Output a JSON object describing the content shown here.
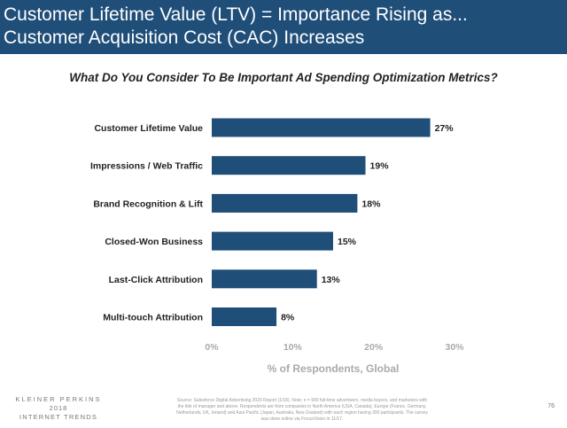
{
  "header": {
    "line1": "Customer Lifetime Value (LTV) = Importance Rising as...",
    "line2": "Customer Acquisition Cost (CAC) Increases"
  },
  "subtitle": "What Do You Consider To Be Important Ad Spending Optimization Metrics?",
  "chart_data": {
    "type": "bar",
    "orientation": "horizontal",
    "categories": [
      "Customer Lifetime Value",
      "Impressions / Web Traffic",
      "Brand Recognition & Lift",
      "Closed-Won Business",
      "Last-Click Attribution",
      "Multi-touch Attribution"
    ],
    "values": [
      27,
      19,
      18,
      15,
      13,
      8
    ],
    "value_labels": [
      "27%",
      "19%",
      "18%",
      "15%",
      "13%",
      "8%"
    ],
    "xlim": [
      0,
      30
    ],
    "xticks": [
      0,
      10,
      20,
      30
    ],
    "xtick_labels": [
      "0%",
      "10%",
      "20%",
      "30%"
    ],
    "xlabel": "% of Respondents, Global",
    "ylabel": "",
    "grid": false,
    "bar_color": "#1f4e79"
  },
  "footer": {
    "logo_line1": "KLEINER PERKINS",
    "logo_line2": "2018",
    "logo_line3": "INTERNET TRENDS",
    "source": "Source: Salesforce Digital Advertising 2020 Report (1/18). Note: n = 900 full-time advertisers, media buyers, and marketers with the title of manager and above. Respondents are from companies in North America (USA, Canada), Europe (France, Germany, Netherlands, UK, Ireland) and Asia Pacific (Japan, Australia, New Zealand) with each region having 300 participants. The survey was done online via FocusVision in 11/17.",
    "page_number": "76"
  },
  "colors": {
    "header_bg": "#1f4e79",
    "bar": "#1f4e79"
  }
}
